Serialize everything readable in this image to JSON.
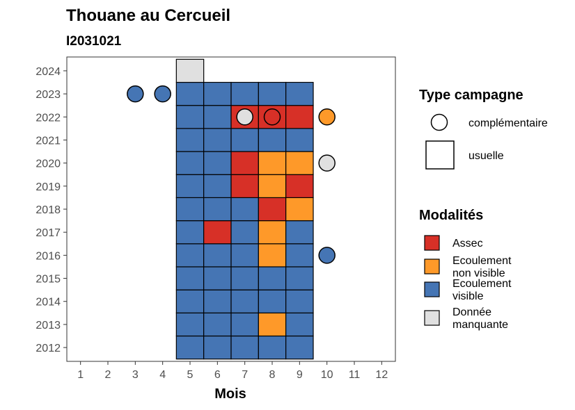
{
  "chart_data": {
    "type": "heatmap",
    "title": "Thouane au Cercueil",
    "subtitle": "I2031021",
    "xlabel": "Mois",
    "ylabel": "",
    "x_ticks": [
      1,
      2,
      3,
      4,
      5,
      6,
      7,
      8,
      9,
      10,
      11,
      12
    ],
    "y_ticks": [
      2012,
      2013,
      2014,
      2015,
      2016,
      2017,
      2018,
      2019,
      2020,
      2021,
      2022,
      2023,
      2024
    ],
    "xlim": [
      0.5,
      12.5
    ],
    "ylim": [
      2011.4,
      2024.6
    ],
    "colors": {
      "Assec": "#D73027",
      "Ecoulement non visible": "#FE9929",
      "Ecoulement visible": "#4575B4",
      "Donnée manquante": "#E0E0E0"
    },
    "cells": [
      {
        "year": 2012,
        "month": 5,
        "modalite": "Ecoulement visible"
      },
      {
        "year": 2012,
        "month": 6,
        "modalite": "Ecoulement visible"
      },
      {
        "year": 2012,
        "month": 7,
        "modalite": "Ecoulement visible"
      },
      {
        "year": 2012,
        "month": 8,
        "modalite": "Ecoulement visible"
      },
      {
        "year": 2012,
        "month": 9,
        "modalite": "Ecoulement visible"
      },
      {
        "year": 2013,
        "month": 5,
        "modalite": "Ecoulement visible"
      },
      {
        "year": 2013,
        "month": 6,
        "modalite": "Ecoulement visible"
      },
      {
        "year": 2013,
        "month": 7,
        "modalite": "Ecoulement visible"
      },
      {
        "year": 2013,
        "month": 8,
        "modalite": "Ecoulement non visible"
      },
      {
        "year": 2013,
        "month": 9,
        "modalite": "Ecoulement visible"
      },
      {
        "year": 2014,
        "month": 5,
        "modalite": "Ecoulement visible"
      },
      {
        "year": 2014,
        "month": 6,
        "modalite": "Ecoulement visible"
      },
      {
        "year": 2014,
        "month": 7,
        "modalite": "Ecoulement visible"
      },
      {
        "year": 2014,
        "month": 8,
        "modalite": "Ecoulement visible"
      },
      {
        "year": 2014,
        "month": 9,
        "modalite": "Ecoulement visible"
      },
      {
        "year": 2015,
        "month": 5,
        "modalite": "Ecoulement visible"
      },
      {
        "year": 2015,
        "month": 6,
        "modalite": "Ecoulement visible"
      },
      {
        "year": 2015,
        "month": 7,
        "modalite": "Ecoulement visible"
      },
      {
        "year": 2015,
        "month": 8,
        "modalite": "Ecoulement visible"
      },
      {
        "year": 2015,
        "month": 9,
        "modalite": "Ecoulement visible"
      },
      {
        "year": 2016,
        "month": 5,
        "modalite": "Ecoulement visible"
      },
      {
        "year": 2016,
        "month": 6,
        "modalite": "Ecoulement visible"
      },
      {
        "year": 2016,
        "month": 7,
        "modalite": "Ecoulement visible"
      },
      {
        "year": 2016,
        "month": 8,
        "modalite": "Ecoulement non visible"
      },
      {
        "year": 2016,
        "month": 9,
        "modalite": "Ecoulement visible"
      },
      {
        "year": 2017,
        "month": 5,
        "modalite": "Ecoulement visible"
      },
      {
        "year": 2017,
        "month": 6,
        "modalite": "Assec"
      },
      {
        "year": 2017,
        "month": 7,
        "modalite": "Ecoulement visible"
      },
      {
        "year": 2017,
        "month": 8,
        "modalite": "Ecoulement non visible"
      },
      {
        "year": 2017,
        "month": 9,
        "modalite": "Ecoulement visible"
      },
      {
        "year": 2018,
        "month": 5,
        "modalite": "Ecoulement visible"
      },
      {
        "year": 2018,
        "month": 6,
        "modalite": "Ecoulement visible"
      },
      {
        "year": 2018,
        "month": 7,
        "modalite": "Ecoulement visible"
      },
      {
        "year": 2018,
        "month": 8,
        "modalite": "Assec"
      },
      {
        "year": 2018,
        "month": 9,
        "modalite": "Ecoulement non visible"
      },
      {
        "year": 2019,
        "month": 5,
        "modalite": "Ecoulement visible"
      },
      {
        "year": 2019,
        "month": 6,
        "modalite": "Ecoulement visible"
      },
      {
        "year": 2019,
        "month": 7,
        "modalite": "Assec"
      },
      {
        "year": 2019,
        "month": 8,
        "modalite": "Ecoulement non visible"
      },
      {
        "year": 2019,
        "month": 9,
        "modalite": "Assec"
      },
      {
        "year": 2020,
        "month": 5,
        "modalite": "Ecoulement visible"
      },
      {
        "year": 2020,
        "month": 6,
        "modalite": "Ecoulement visible"
      },
      {
        "year": 2020,
        "month": 7,
        "modalite": "Assec"
      },
      {
        "year": 2020,
        "month": 8,
        "modalite": "Ecoulement non visible"
      },
      {
        "year": 2020,
        "month": 9,
        "modalite": "Ecoulement non visible"
      },
      {
        "year": 2021,
        "month": 5,
        "modalite": "Ecoulement visible"
      },
      {
        "year": 2021,
        "month": 6,
        "modalite": "Ecoulement visible"
      },
      {
        "year": 2021,
        "month": 7,
        "modalite": "Ecoulement visible"
      },
      {
        "year": 2021,
        "month": 8,
        "modalite": "Ecoulement visible"
      },
      {
        "year": 2021,
        "month": 9,
        "modalite": "Ecoulement visible"
      },
      {
        "year": 2022,
        "month": 5,
        "modalite": "Ecoulement visible"
      },
      {
        "year": 2022,
        "month": 6,
        "modalite": "Ecoulement visible"
      },
      {
        "year": 2022,
        "month": 7,
        "modalite": "Assec"
      },
      {
        "year": 2022,
        "month": 8,
        "modalite": "Assec"
      },
      {
        "year": 2022,
        "month": 9,
        "modalite": "Assec"
      },
      {
        "year": 2023,
        "month": 5,
        "modalite": "Ecoulement visible"
      },
      {
        "year": 2023,
        "month": 6,
        "modalite": "Ecoulement visible"
      },
      {
        "year": 2023,
        "month": 7,
        "modalite": "Ecoulement visible"
      },
      {
        "year": 2023,
        "month": 8,
        "modalite": "Ecoulement visible"
      },
      {
        "year": 2023,
        "month": 9,
        "modalite": "Ecoulement visible"
      },
      {
        "year": 2024,
        "month": 5,
        "modalite": "Donnée manquante"
      }
    ],
    "points": [
      {
        "year": 2023,
        "month": 3,
        "modalite": "Ecoulement visible"
      },
      {
        "year": 2023,
        "month": 4,
        "modalite": "Ecoulement visible"
      },
      {
        "year": 2022,
        "month": 7,
        "modalite": "Donnée manquante"
      },
      {
        "year": 2022,
        "month": 8,
        "modalite": "Assec"
      },
      {
        "year": 2022,
        "month": 10,
        "modalite": "Ecoulement non visible"
      },
      {
        "year": 2020,
        "month": 10,
        "modalite": "Donnée manquante"
      },
      {
        "year": 2016,
        "month": 10,
        "modalite": "Ecoulement visible"
      }
    ],
    "legend_type": {
      "title": "Type campagne",
      "items": [
        {
          "label": "complémentaire",
          "shape": "circle"
        },
        {
          "label": "usuelle",
          "shape": "square"
        }
      ]
    },
    "legend_modalites": {
      "title": "Modalités",
      "items": [
        {
          "key": "Assec",
          "lines": [
            "Assec"
          ]
        },
        {
          "key": "Ecoulement non visible",
          "lines": [
            "Ecoulement",
            "non visible"
          ]
        },
        {
          "key": "Ecoulement visible",
          "lines": [
            "Ecoulement",
            "visible"
          ]
        },
        {
          "key": "Donnée manquante",
          "lines": [
            "Donnée",
            "manquante"
          ]
        }
      ]
    },
    "legend_placement": "right",
    "grid": false
  }
}
